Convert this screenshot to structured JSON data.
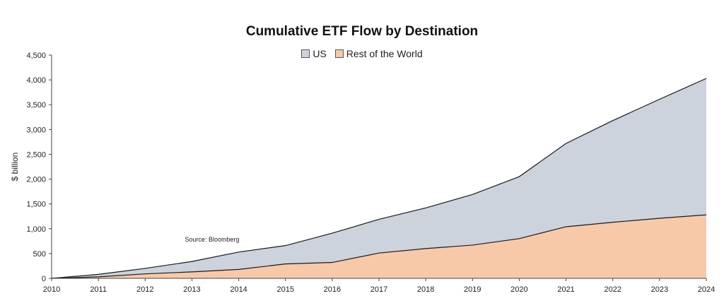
{
  "chart_data": {
    "type": "area",
    "title": "Cumulative ETF Flow by Destination",
    "ylabel": "$ billion",
    "xlabel": "",
    "x": [
      "2010",
      "2011",
      "2012",
      "2013",
      "2014",
      "2015",
      "2016",
      "2017",
      "2018",
      "2019",
      "2020",
      "2021",
      "2022",
      "2023",
      "2024"
    ],
    "ylim": [
      0,
      4500
    ],
    "yticks": [
      0,
      500,
      1000,
      1500,
      2000,
      2500,
      3000,
      3500,
      4000,
      4500
    ],
    "ytick_labels": [
      "0",
      "500",
      "1,000",
      "1,500",
      "2,000",
      "2,500",
      "3,000",
      "3,500",
      "4,000",
      "4,500"
    ],
    "stacked": true,
    "legend_position": "top-center",
    "grid": false,
    "series": [
      {
        "name": "Rest of the World",
        "color": "#f7c9a9",
        "values": [
          0,
          30,
          90,
          130,
          180,
          290,
          320,
          510,
          600,
          670,
          800,
          1040,
          1130,
          1210,
          1280
        ]
      },
      {
        "name": "US",
        "color": "#ccd3dd",
        "values": [
          0,
          50,
          110,
          210,
          350,
          370,
          590,
          680,
          820,
          1020,
          1250,
          1680,
          2050,
          2400,
          2750
        ]
      }
    ],
    "legend_order": [
      "US",
      "Rest of the World"
    ],
    "annotations": [
      {
        "text": "Source: Bloomberg",
        "x": "2013",
        "y": 800
      }
    ]
  }
}
